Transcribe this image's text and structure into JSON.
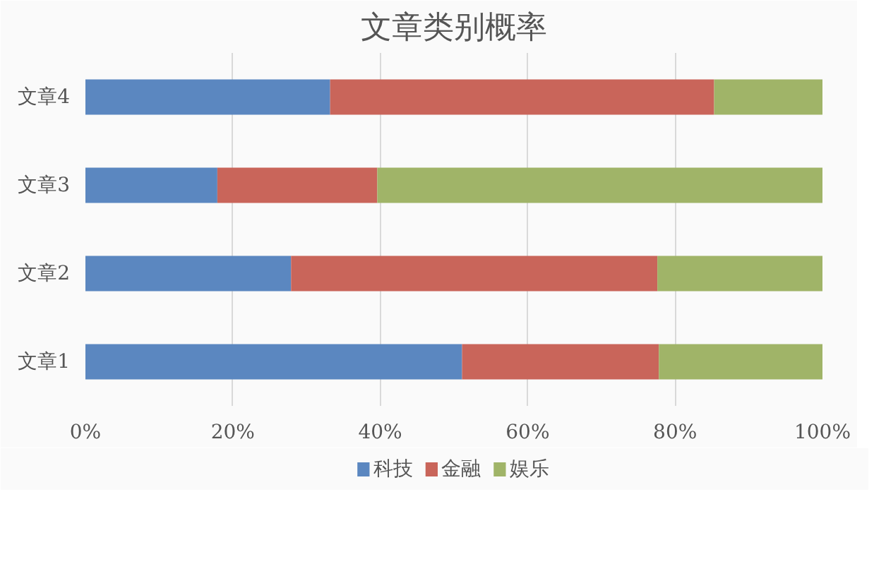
{
  "chart_data": {
    "type": "bar",
    "title": "文章类别概率",
    "orientation": "horizontal",
    "stacked": true,
    "categories": [
      "文章4",
      "文章3",
      "文章2",
      "文章1"
    ],
    "series": [
      {
        "name": "科技",
        "color": "#5b87c0",
        "values": [
          33.2,
          17.9,
          27.9,
          51.1
        ]
      },
      {
        "name": "金融",
        "color": "#c9655a",
        "values": [
          52.1,
          21.7,
          49.7,
          26.7
        ]
      },
      {
        "name": "娱乐",
        "color": "#a0b468",
        "values": [
          14.7,
          60.4,
          22.4,
          22.2
        ]
      }
    ],
    "xlim": [
      0,
      100
    ],
    "xticks": [
      {
        "value": 0,
        "label": "0%"
      },
      {
        "value": 20,
        "label": "20%"
      },
      {
        "value": 40,
        "label": "40%"
      },
      {
        "value": 60,
        "label": "60%"
      },
      {
        "value": 80,
        "label": "80%"
      },
      {
        "value": 100,
        "label": "100%"
      }
    ],
    "grid": "x",
    "legend": "bottom"
  }
}
